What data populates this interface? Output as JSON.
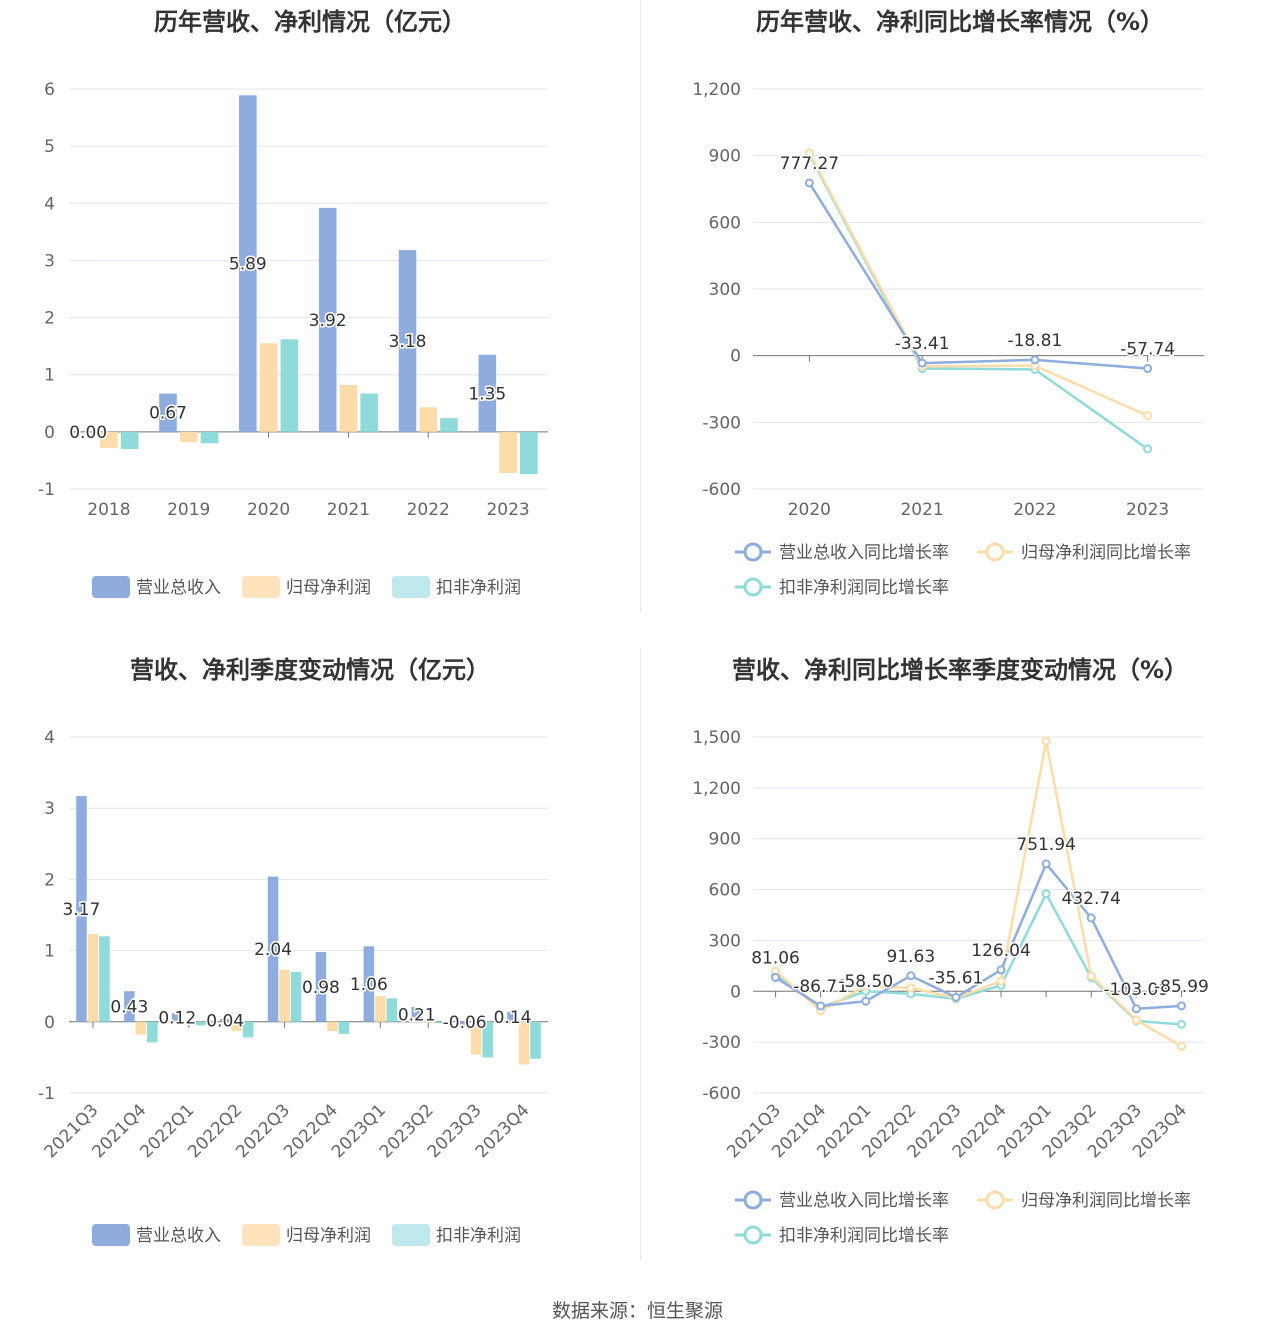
{
  "footer": "数据来源：恒生聚源",
  "colors": {
    "revenue": "#8eadde",
    "parent_np": "#fedca9",
    "deducted_np": "#8fdbd9",
    "grid": "#e3e6ef",
    "axis": "#777777"
  },
  "chart_data": [
    {
      "id": "annual_bar",
      "type": "bar",
      "title": "历年营收、净利情况（亿元）",
      "categories": [
        "2018",
        "2019",
        "2020",
        "2021",
        "2022",
        "2023"
      ],
      "ylim": [
        -1,
        6
      ],
      "yticks": [
        -1,
        0,
        1,
        2,
        3,
        4,
        5,
        6
      ],
      "series": [
        {
          "name": "营业总收入",
          "values": [
            0.0,
            0.67,
            5.89,
            3.92,
            3.18,
            1.35
          ],
          "labels": [
            "0.00",
            "0.67",
            "5.89",
            "3.92",
            "3.18",
            "1.35"
          ]
        },
        {
          "name": "归母净利润",
          "values": [
            -0.28,
            -0.18,
            1.55,
            0.82,
            0.43,
            -0.72
          ]
        },
        {
          "name": "扣非净利润",
          "values": [
            -0.3,
            -0.2,
            1.62,
            0.67,
            0.24,
            -0.74
          ]
        }
      ]
    },
    {
      "id": "annual_growth",
      "type": "line",
      "title": "历年营收、净利同比增长率情况（%）",
      "categories": [
        "2020",
        "2021",
        "2022",
        "2023"
      ],
      "ylim": [
        -600,
        1200
      ],
      "yticks": [
        -600,
        -300,
        0,
        300,
        600,
        900,
        1200
      ],
      "ytick_labels": [
        "-600",
        "-300",
        "0",
        "300",
        "600",
        "900",
        "1,200"
      ],
      "series": [
        {
          "name": "营业总收入同比增长率",
          "values": [
            777.27,
            -33.41,
            -18.81,
            -57.74
          ],
          "labels": [
            "777.27",
            "-33.41",
            "-18.81",
            "-57.74"
          ]
        },
        {
          "name": "归母净利润同比增长率",
          "values": [
            912,
            -48,
            -45,
            -270
          ]
        },
        {
          "name": "扣非净利润同比增长率",
          "values": [
            905,
            -58,
            -62,
            -420
          ]
        }
      ]
    },
    {
      "id": "quarterly_bar",
      "type": "bar",
      "title": "营收、净利季度变动情况（亿元）",
      "categories": [
        "2021Q3",
        "2021Q4",
        "2022Q1",
        "2022Q2",
        "2022Q3",
        "2022Q4",
        "2023Q1",
        "2023Q2",
        "2023Q3",
        "2023Q4"
      ],
      "ylim": [
        -1,
        4
      ],
      "yticks": [
        -1,
        0,
        1,
        2,
        3,
        4
      ],
      "series": [
        {
          "name": "营业总收入",
          "values": [
            3.17,
            0.43,
            0.12,
            0.04,
            2.04,
            0.98,
            1.06,
            0.21,
            -0.06,
            0.14
          ],
          "labels": [
            "3.17",
            "0.43",
            "0.12",
            "0.04",
            "2.04",
            "0.98",
            "1.06",
            "0.21",
            "-0.06",
            "0.14"
          ]
        },
        {
          "name": "归母净利润",
          "values": [
            1.23,
            -0.18,
            -0.02,
            -0.13,
            0.73,
            -0.13,
            0.36,
            -0.01,
            -0.46,
            -0.6
          ]
        },
        {
          "name": "扣非净利润",
          "values": [
            1.2,
            -0.29,
            -0.05,
            -0.22,
            0.7,
            -0.17,
            0.33,
            -0.02,
            -0.5,
            -0.52
          ]
        }
      ]
    },
    {
      "id": "quarterly_growth",
      "type": "line",
      "title": "营收、净利同比增长率季度变动情况（%）",
      "categories": [
        "2021Q3",
        "2021Q4",
        "2022Q1",
        "2022Q2",
        "2022Q3",
        "2022Q4",
        "2023Q1",
        "2023Q2",
        "2023Q3",
        "2023Q4"
      ],
      "ylim": [
        -600,
        1500
      ],
      "yticks": [
        -600,
        -300,
        0,
        300,
        600,
        900,
        1200,
        1500
      ],
      "ytick_labels": [
        "-600",
        "-300",
        "0",
        "300",
        "600",
        "900",
        "1,200",
        "1,500"
      ],
      "series": [
        {
          "name": "营业总收入同比增长率",
          "values": [
            81.06,
            -86.71,
            -58.5,
            91.63,
            -35.61,
            126.04,
            751.94,
            432.74,
            -103.09,
            -85.99
          ],
          "labels": [
            "81.06",
            "-86.71",
            "-58.50",
            "91.63",
            "-35.61",
            "126.04",
            "751.94",
            "432.74",
            "-103.09",
            "-85.99"
          ]
        },
        {
          "name": "归母净利润同比增长率",
          "values": [
            120,
            -115,
            30,
            20,
            -40,
            60,
            1475,
            90,
            -170,
            -325
          ]
        },
        {
          "name": "扣非净利润同比增长率",
          "values": [
            100,
            -95,
            0,
            -15,
            -45,
            35,
            575,
            80,
            -175,
            -195
          ]
        }
      ]
    }
  ]
}
